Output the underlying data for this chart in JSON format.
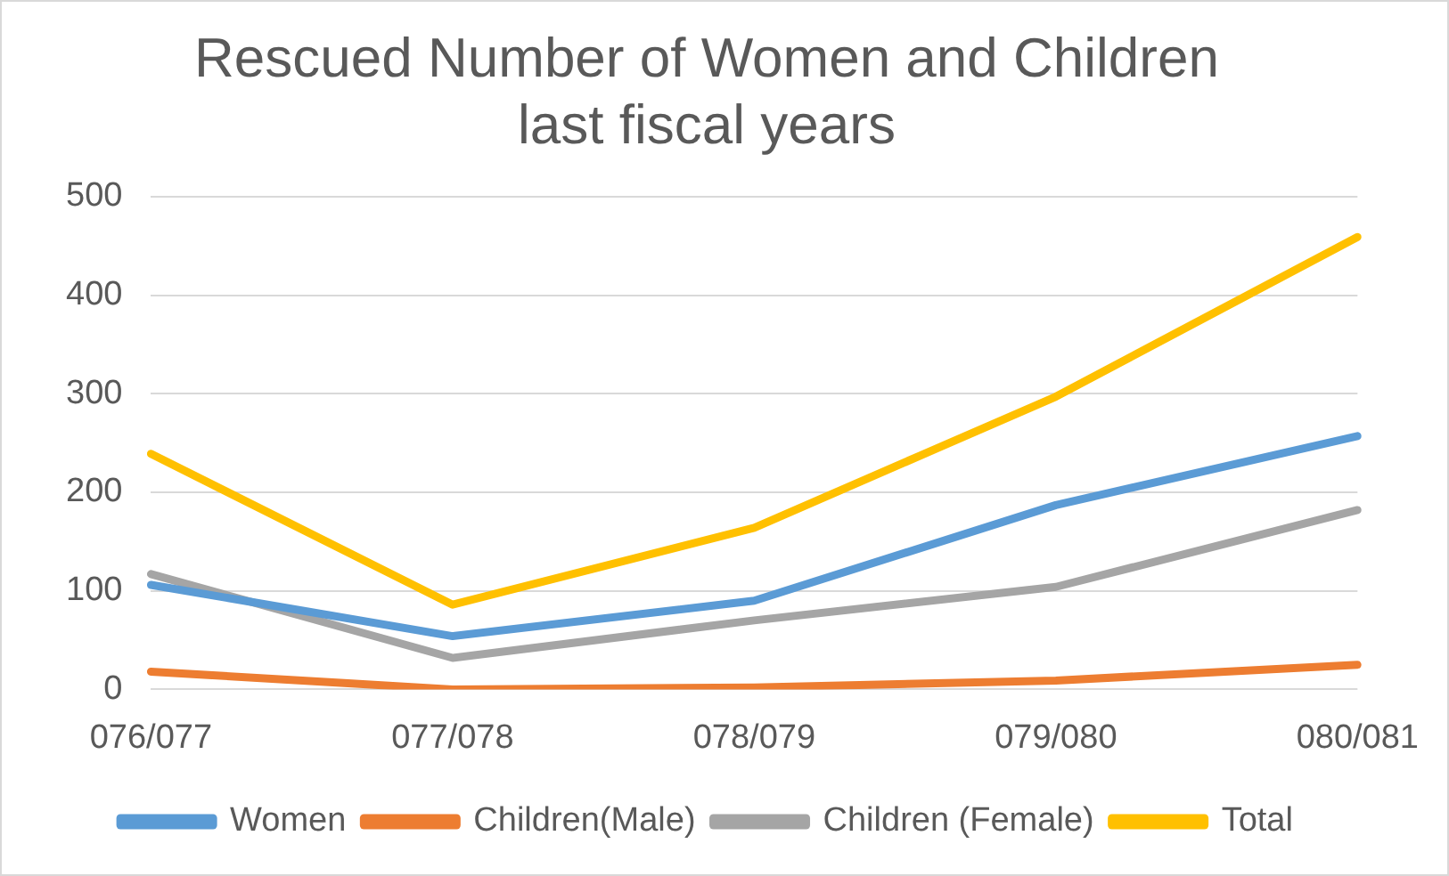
{
  "chart_data": {
    "type": "line",
    "title": "Rescued Number of Women and Children\nlast fiscal years",
    "categories": [
      "076/077",
      "077/078",
      "078/079",
      "079/080",
      "080/081"
    ],
    "series": [
      {
        "name": "Women",
        "color": "#5b9bd5",
        "values": [
          106,
          54,
          90,
          187,
          257
        ]
      },
      {
        "name": "Children(Male)",
        "color": "#ed7d31",
        "values": [
          18,
          0,
          2,
          9,
          25
        ]
      },
      {
        "name": "Children (Female)",
        "color": "#a5a5a5",
        "values": [
          117,
          32,
          70,
          104,
          182
        ]
      },
      {
        "name": "Total",
        "color": "#ffc000",
        "values": [
          239,
          86,
          164,
          297,
          459
        ]
      }
    ],
    "ylim": [
      0,
      500
    ],
    "yticks": [
      0,
      100,
      200,
      300,
      400,
      500
    ],
    "grid": "y",
    "legend": "bottom",
    "marker": "none",
    "line_style": "solid"
  }
}
